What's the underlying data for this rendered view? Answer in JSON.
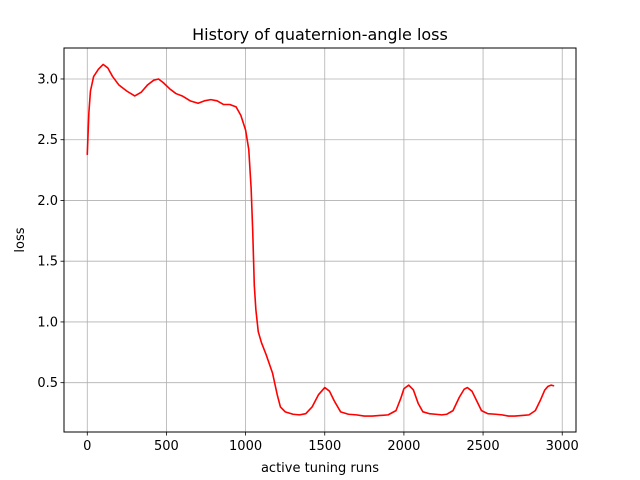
{
  "chart_data": {
    "type": "line",
    "title": "History of quaternion-angle loss",
    "xlabel": "active tuning runs",
    "ylabel": "loss",
    "xlim": [
      -147,
      3087
    ],
    "ylim": [
      0.094,
      3.255
    ],
    "xticks": [
      0,
      500,
      1000,
      1500,
      2000,
      2500,
      3000
    ],
    "xtick_labels": [
      "0",
      "500",
      "1000",
      "1500",
      "2000",
      "2500",
      "3000"
    ],
    "yticks": [
      0.5,
      1.0,
      1.5,
      2.0,
      2.5,
      3.0
    ],
    "ytick_labels": [
      "0.5",
      "1.0",
      "1.5",
      "2.0",
      "2.5",
      "3.0"
    ],
    "grid": true,
    "colors": {
      "line": "#ff0000",
      "grid": "#b0b0b0",
      "axes": "#000000"
    },
    "series": [
      {
        "points": [
          [
            0,
            2.38
          ],
          [
            10,
            2.72
          ],
          [
            20,
            2.9
          ],
          [
            40,
            3.02
          ],
          [
            70,
            3.08
          ],
          [
            100,
            3.12
          ],
          [
            130,
            3.09
          ],
          [
            160,
            3.02
          ],
          [
            200,
            2.95
          ],
          [
            250,
            2.9
          ],
          [
            300,
            2.86
          ],
          [
            340,
            2.89
          ],
          [
            380,
            2.95
          ],
          [
            420,
            2.99
          ],
          [
            450,
            3.0
          ],
          [
            480,
            2.97
          ],
          [
            520,
            2.92
          ],
          [
            560,
            2.88
          ],
          [
            600,
            2.86
          ],
          [
            650,
            2.82
          ],
          [
            700,
            2.8
          ],
          [
            740,
            2.82
          ],
          [
            780,
            2.83
          ],
          [
            820,
            2.82
          ],
          [
            860,
            2.79
          ],
          [
            900,
            2.79
          ],
          [
            940,
            2.77
          ],
          [
            970,
            2.7
          ],
          [
            1000,
            2.58
          ],
          [
            1020,
            2.42
          ],
          [
            1035,
            2.1
          ],
          [
            1045,
            1.75
          ],
          [
            1055,
            1.3
          ],
          [
            1065,
            1.1
          ],
          [
            1080,
            0.92
          ],
          [
            1100,
            0.83
          ],
          [
            1130,
            0.73
          ],
          [
            1170,
            0.58
          ],
          [
            1200,
            0.4
          ],
          [
            1220,
            0.3
          ],
          [
            1250,
            0.26
          ],
          [
            1300,
            0.24
          ],
          [
            1340,
            0.235
          ],
          [
            1380,
            0.245
          ],
          [
            1420,
            0.3
          ],
          [
            1460,
            0.4
          ],
          [
            1500,
            0.46
          ],
          [
            1530,
            0.43
          ],
          [
            1560,
            0.35
          ],
          [
            1600,
            0.26
          ],
          [
            1650,
            0.24
          ],
          [
            1700,
            0.235
          ],
          [
            1750,
            0.225
          ],
          [
            1800,
            0.225
          ],
          [
            1850,
            0.23
          ],
          [
            1900,
            0.235
          ],
          [
            1950,
            0.27
          ],
          [
            1980,
            0.37
          ],
          [
            2000,
            0.45
          ],
          [
            2030,
            0.48
          ],
          [
            2060,
            0.44
          ],
          [
            2090,
            0.33
          ],
          [
            2120,
            0.26
          ],
          [
            2160,
            0.245
          ],
          [
            2200,
            0.24
          ],
          [
            2240,
            0.235
          ],
          [
            2270,
            0.24
          ],
          [
            2310,
            0.27
          ],
          [
            2350,
            0.38
          ],
          [
            2380,
            0.445
          ],
          [
            2400,
            0.46
          ],
          [
            2430,
            0.43
          ],
          [
            2460,
            0.35
          ],
          [
            2490,
            0.27
          ],
          [
            2530,
            0.245
          ],
          [
            2580,
            0.24
          ],
          [
            2620,
            0.235
          ],
          [
            2660,
            0.225
          ],
          [
            2700,
            0.225
          ],
          [
            2750,
            0.23
          ],
          [
            2790,
            0.235
          ],
          [
            2830,
            0.27
          ],
          [
            2860,
            0.35
          ],
          [
            2890,
            0.44
          ],
          [
            2910,
            0.47
          ],
          [
            2930,
            0.48
          ],
          [
            2945,
            0.475
          ]
        ]
      }
    ]
  }
}
